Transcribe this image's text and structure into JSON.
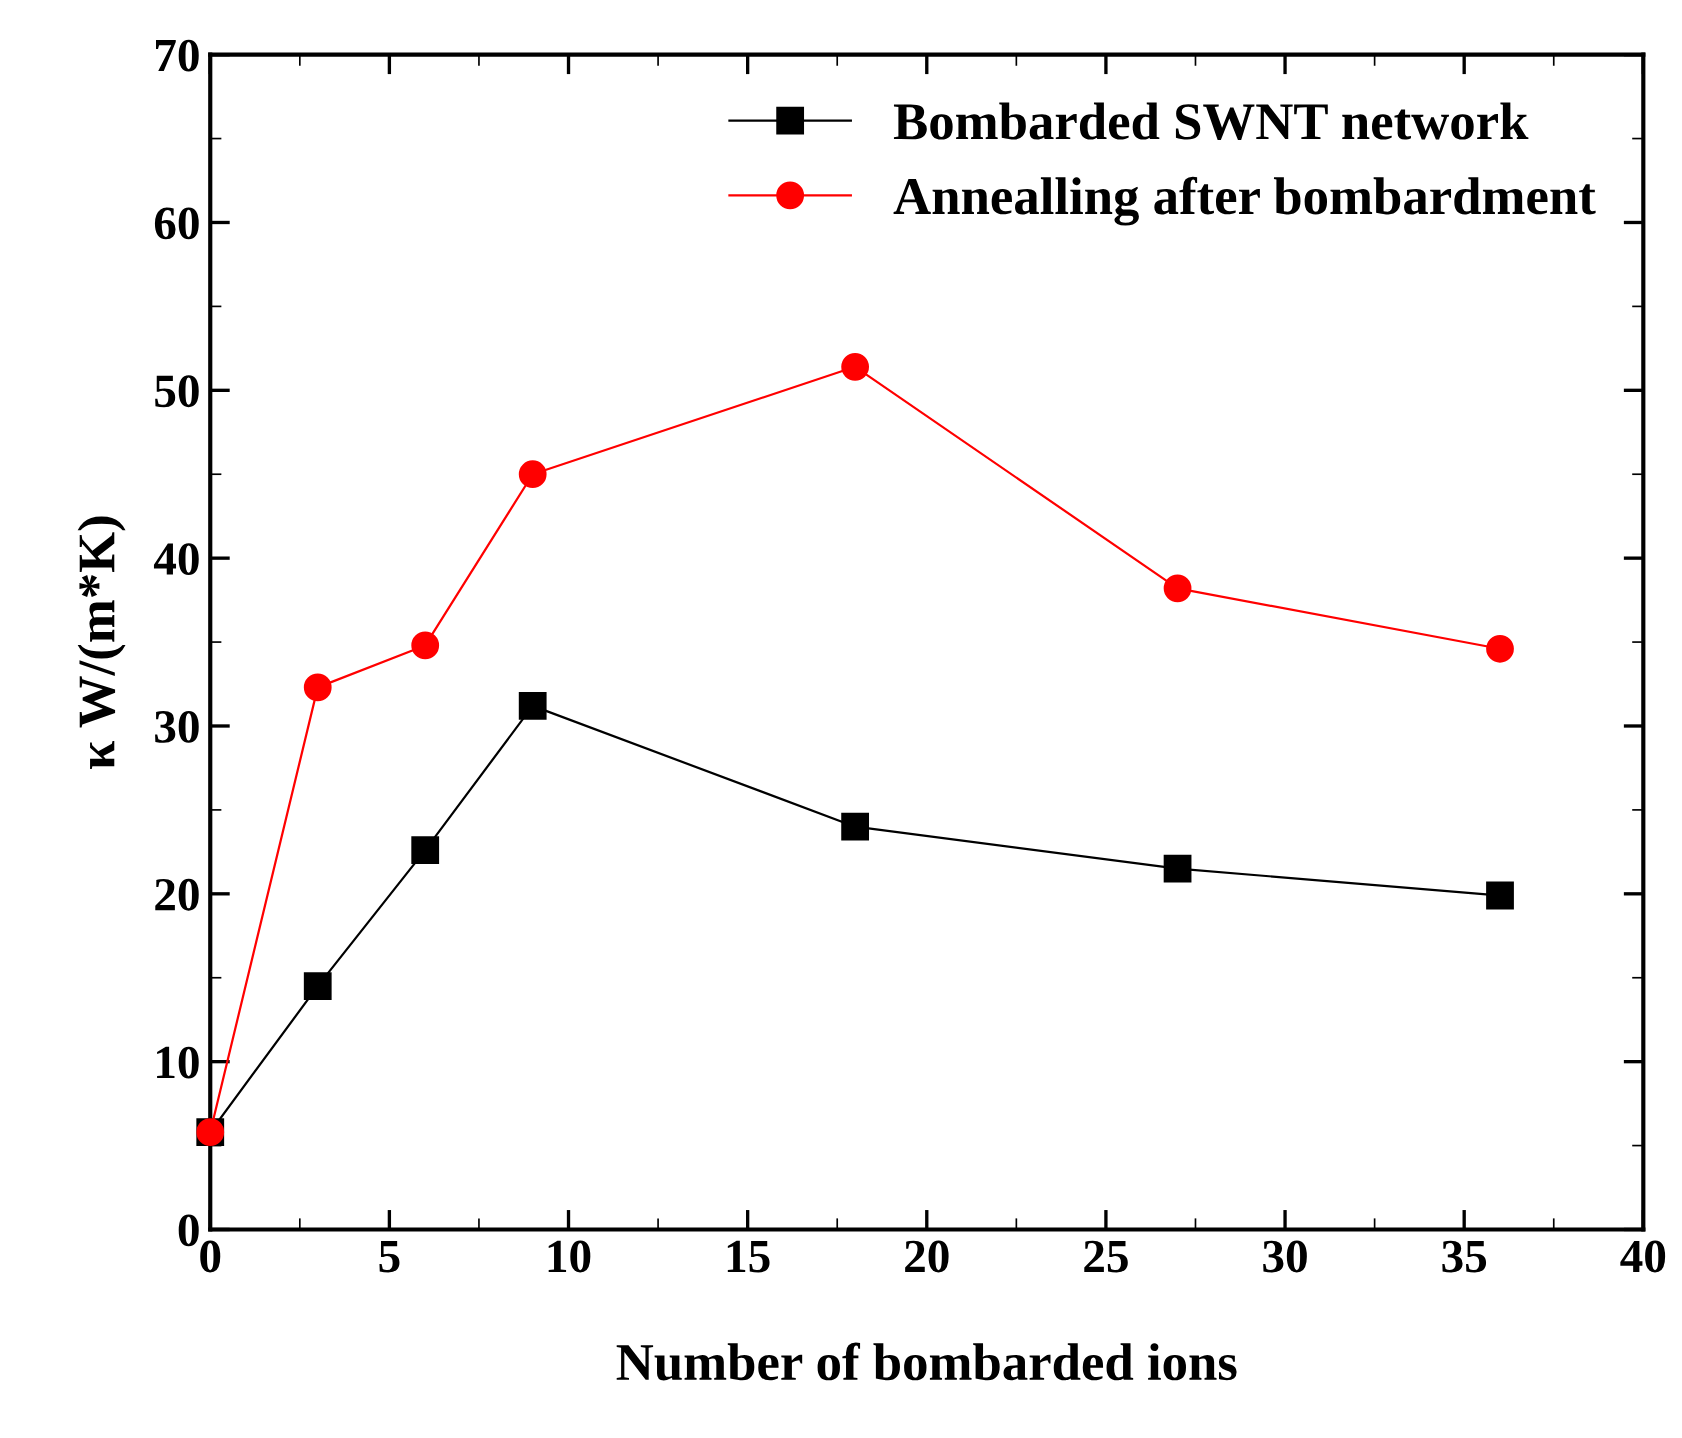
{
  "chart_data": {
    "type": "line",
    "xlabel": "Number of bombarded ions",
    "ylabel": "κ W/(m*K)",
    "x": [
      0,
      3,
      6,
      9,
      18,
      27,
      36
    ],
    "series": [
      {
        "name": "Bombarded SWNT network",
        "color": "#000000",
        "marker": "square",
        "values": [
          5.8,
          14.5,
          22.6,
          31.2,
          24.0,
          21.5,
          19.9
        ]
      },
      {
        "name": "Annealling after bombardment",
        "color": "#ff0000",
        "marker": "circle",
        "values": [
          5.8,
          32.3,
          34.8,
          45.0,
          51.4,
          38.2,
          34.6
        ]
      }
    ],
    "xlim": [
      0,
      40
    ],
    "xticks": [
      0,
      5,
      10,
      15,
      20,
      25,
      30,
      35,
      40
    ],
    "ylim": [
      0,
      70
    ],
    "yticks": [
      0,
      10,
      20,
      30,
      40,
      50,
      60,
      70
    ],
    "grid": false,
    "legend": "top right",
    "line_style": "solid"
  }
}
